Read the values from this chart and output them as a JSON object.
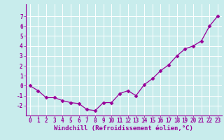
{
  "x": [
    0,
    1,
    2,
    3,
    4,
    5,
    6,
    7,
    8,
    9,
    10,
    11,
    12,
    13,
    14,
    15,
    16,
    17,
    18,
    19,
    20,
    21,
    22,
    23
  ],
  "y": [
    0.0,
    -0.5,
    -1.2,
    -1.2,
    -1.5,
    -1.7,
    -1.8,
    -2.4,
    -2.5,
    -1.7,
    -1.7,
    -0.8,
    -0.5,
    -1.0,
    0.1,
    0.7,
    1.5,
    2.1,
    3.0,
    3.7,
    4.0,
    4.5,
    6.0,
    7.0
  ],
  "line_color": "#990099",
  "marker": "D",
  "markersize": 2.5,
  "linewidth": 0.9,
  "background_color": "#c8ecec",
  "grid_color": "#aadddd",
  "tick_color": "#990099",
  "label_color": "#990099",
  "xlabel": "Windchill (Refroidissement éolien,°C)",
  "xlabel_fontsize": 6.5,
  "tick_fontsize": 5.5,
  "xlim": [
    -0.5,
    23.5
  ],
  "ylim": [
    -3.0,
    8.2
  ],
  "yticks": [
    -2,
    -1,
    0,
    1,
    2,
    3,
    4,
    5,
    6,
    7
  ],
  "xticks": [
    0,
    1,
    2,
    3,
    4,
    5,
    6,
    7,
    8,
    9,
    10,
    11,
    12,
    13,
    14,
    15,
    16,
    17,
    18,
    19,
    20,
    21,
    22,
    23
  ]
}
